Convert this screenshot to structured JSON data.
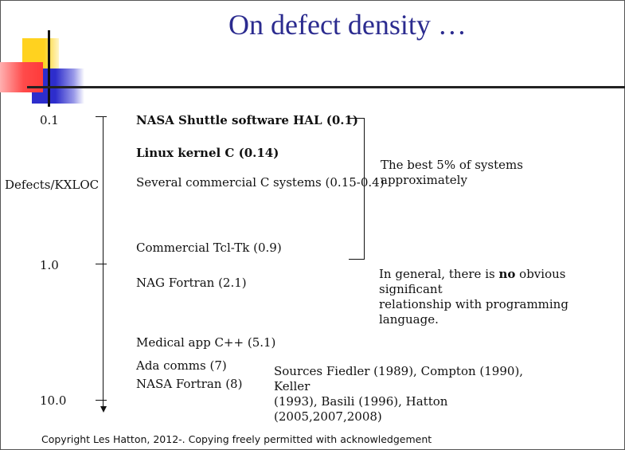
{
  "slide": {
    "title": "On defect density …",
    "axis_ticks": [
      "0.1",
      "1.0",
      "10.0"
    ],
    "axis_label": "Defects/KXLOC",
    "items": [
      "NASA Shuttle software HAL (0.1)",
      "Linux kernel C (0.14)",
      "Several commercial C systems (0.15-0.4)",
      "Commercial Tcl-Tk (0.9)",
      "NAG Fortran (2.1)",
      "Medical app C++ (5.1)",
      "Ada comms (7)",
      "NASA Fortran (8)"
    ],
    "best_note_line1": "The best 5% of systems",
    "best_note_line2": "approximately",
    "general_prefix": "In general, there is ",
    "general_bold": "no",
    "general_suffix1": " obvious significant",
    "general_line2": "relationship with programming language.",
    "sources_line1": "Sources Fiedler (1989), Compton (1990), Keller",
    "sources_line2": "(1993), Basili (1996), Hatton (2005,2007,2008)",
    "copyright": "Copyright Les Hatton, 2012-.  Copying freely permitted with acknowledgement"
  },
  "colors": {
    "title": "#2b2b8f",
    "yellow": "#ffd21f",
    "red": "#ff3a3a",
    "blue": "#2d2dcc"
  }
}
